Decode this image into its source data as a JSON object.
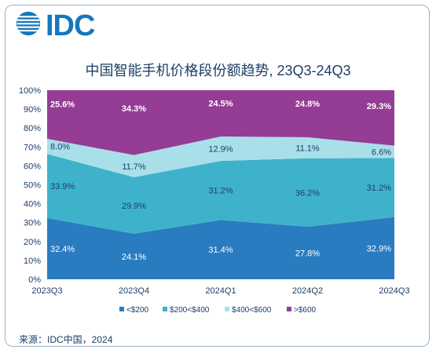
{
  "logo": {
    "text": "IDC"
  },
  "source": "来源：IDC中国，2024",
  "colors": {
    "lt200": "#2a7cc0",
    "b200_400": "#3fb2cb",
    "b400_600": "#a9dfe9",
    "gt600": "#953c95"
  },
  "chart_data": {
    "type": "area",
    "stacked": true,
    "title": "中国智能手机价格段份额趋势, 23Q3-24Q3",
    "categories": [
      "2023Q3",
      "2023Q4",
      "2024Q1",
      "2024Q2",
      "2024Q3"
    ],
    "ylim": [
      0,
      100
    ],
    "yticks": [
      "0%",
      "10%",
      "20%",
      "30%",
      "40%",
      "50%",
      "60%",
      "70%",
      "80%",
      "90%",
      "100%"
    ],
    "series": [
      {
        "name": "<$200",
        "values": [
          32.4,
          24.1,
          31.4,
          27.8,
          32.9
        ],
        "labels": [
          "32.4%",
          "24.1%",
          "31.4%",
          "27.8%",
          "32.9%"
        ]
      },
      {
        "name": "$200<$400",
        "values": [
          33.9,
          29.9,
          31.2,
          36.2,
          31.2
        ],
        "labels": [
          "33.9%",
          "29.9%",
          "31.2%",
          "36.2%",
          "31.2%"
        ]
      },
      {
        "name": "$400<$600",
        "values": [
          8.0,
          11.7,
          12.9,
          11.1,
          6.6
        ],
        "labels": [
          "8.0%",
          "11.7%",
          "12.9%",
          "11.1%",
          "6.6%"
        ]
      },
      {
        "name": ">$600",
        "values": [
          25.6,
          34.3,
          24.5,
          24.8,
          29.3
        ],
        "labels": [
          "25.6%",
          "34.3%",
          "24.5%",
          "24.8%",
          "29.3%"
        ]
      }
    ],
    "legend_position": "bottom",
    "grid": false
  }
}
